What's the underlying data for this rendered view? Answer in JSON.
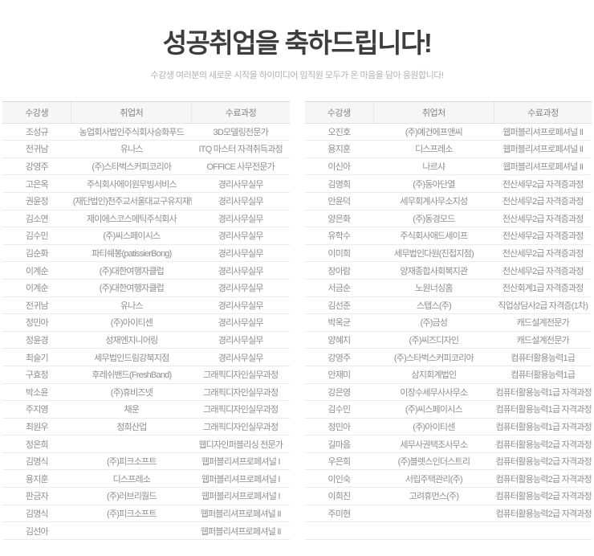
{
  "header": {
    "title": "성공취업을 축하드립니다!",
    "subtitle": "수강생 여러분의 새로운 시작을 하이미디어 임직원 모두가 온 마음을 담아 응원합니다!"
  },
  "columns": {
    "student": "수강생",
    "employer": "취업처",
    "course": "수료과정"
  },
  "colors": {
    "title_text": "#3d3d3d",
    "subtitle_text": "#b2b2b2",
    "table_text": "#8f8f8f",
    "header_bg": "#f6f6f6",
    "row_border": "#ebebeb"
  },
  "left_table": {
    "rows": [
      [
        "조성규",
        "농업회사법인주식회사승화푸드",
        "3D모델링전문가"
      ],
      [
        "전귀남",
        "유나스",
        "ITQ 마스터 자격취득과정"
      ],
      [
        "강영주",
        "(주)스타벅스커피코리아",
        "OFFICE 사무전문가"
      ],
      [
        "고은옥",
        "주식회사에이원무빙서비스",
        "경리사무실무"
      ],
      [
        "권윤정",
        "(재단법인)천주교서울대교구유지재단",
        "경리사무실무"
      ],
      [
        "김소연",
        "제이에스코스메틱주식회사",
        "경리사무실무"
      ],
      [
        "김수민",
        "(주)씨스페이시스",
        "경리사무실무"
      ],
      [
        "김순화",
        "파티쉐봉(patissierBong)",
        "경리사무실무"
      ],
      [
        "이계순",
        "(주)대한여행자클럽",
        "경리사무실무"
      ],
      [
        "이계순",
        "(주)대한여행자클럽",
        "경리사무실무"
      ],
      [
        "전귀남",
        "유나스",
        "경리사무실무"
      ],
      [
        "정민아",
        "(주)아이티센",
        "경리사무실무"
      ],
      [
        "정윤경",
        "성재엔지니어링",
        "경리사무실무"
      ],
      [
        "최슬기",
        "세무법인드림강북지점",
        "경리사무실무"
      ],
      [
        "구효정",
        "후레쉬밴드(FreshBand)",
        "그래픽디자인실무과정"
      ],
      [
        "박소윤",
        "(주)휴비즈넷",
        "그래픽디자인실무과정"
      ],
      [
        "주지영",
        "채운",
        "그래픽디자인실무과정"
      ],
      [
        "최원우",
        "정희산업",
        "그래픽디자인실무과정"
      ],
      [
        "정은희",
        "",
        "웹디자인퍼블리싱 전문가"
      ],
      [
        "김명식",
        "(주)피크소프트",
        "웹퍼블리셔프로페셔널 I"
      ],
      [
        "용지훈",
        "디스프레소",
        "웹퍼블리셔프로페셔널 I"
      ],
      [
        "판금자",
        "(주)러브리월드",
        "웹퍼블리셔프로페셔널 I"
      ],
      [
        "김명식",
        "(주)피크소프트",
        "웹퍼블리셔프로페셔널 II"
      ],
      [
        "김선아",
        "",
        "웹퍼블리셔프로페셔널 II"
      ]
    ]
  },
  "right_table": {
    "rows": [
      [
        "오진호",
        "(주)예건에프앤씨",
        "웹퍼블리셔프로페셔널 II"
      ],
      [
        "용지훈",
        "디스프레소",
        "웹퍼블리셔프로페셔널 II"
      ],
      [
        "이신아",
        "나르샤",
        "웹퍼블리셔프로페셔널 II"
      ],
      [
        "김명희",
        "(주)동아단열",
        "전산세무2급 자격증과정"
      ],
      [
        "안윤덕",
        "세무회계사무소지성",
        "전산세무2급 자격증과정"
      ],
      [
        "양은화",
        "(주)동경모드",
        "전산세무2급 자격증과정"
      ],
      [
        "유학수",
        "주식회사애드세이프",
        "전산세무2급 자격증과정"
      ],
      [
        "이미희",
        "세무법인다원(진접지점)",
        "전산세무2급 자격증과정"
      ],
      [
        "장아람",
        "양재종합사회복지관",
        "전산세무2급 자격증과정"
      ],
      [
        "서금순",
        "노원너싱홈",
        "전산회계1급 자격증과정"
      ],
      [
        "김선준",
        "스탭스(주)",
        "직업상담사2급 자격증(1차)"
      ],
      [
        "박옥균",
        "(주)금성",
        "캐드설계전문가"
      ],
      [
        "양혜지",
        "(주)씨즈디자인",
        "캐드설계전문가"
      ],
      [
        "강영주",
        "(주)스타벅스커피코리아",
        "컴퓨터활용능력1급"
      ],
      [
        "안재미",
        "삼지회계법인",
        "컴퓨터활용능력1급"
      ],
      [
        "강은영",
        "이장수세무사사무소",
        "컴퓨터활용능력1급 자격과정"
      ],
      [
        "김수민",
        "(주)씨스페이시스",
        "컴퓨터활용능력1급 자격과정"
      ],
      [
        "정민아",
        "(주)아이티센",
        "컴퓨터활용능력1급 자격과정"
      ],
      [
        "길마음",
        "세무사권택조사무소",
        "컴퓨터활용능력2급 자격과정"
      ],
      [
        "우은희",
        "(주)블렛스인더스트리",
        "컴퓨터활용능력2급 자격과정"
      ],
      [
        "이인숙",
        "서립주택관리(주)",
        "컴퓨터활용능력2급 자격과정"
      ],
      [
        "이희진",
        "고려휴먼스(주)",
        "컴퓨터활용능력2급 자격과정"
      ],
      [
        "주미현",
        "",
        "컴퓨터활용능력2급 자격과정"
      ],
      [
        "",
        "",
        ""
      ]
    ]
  }
}
